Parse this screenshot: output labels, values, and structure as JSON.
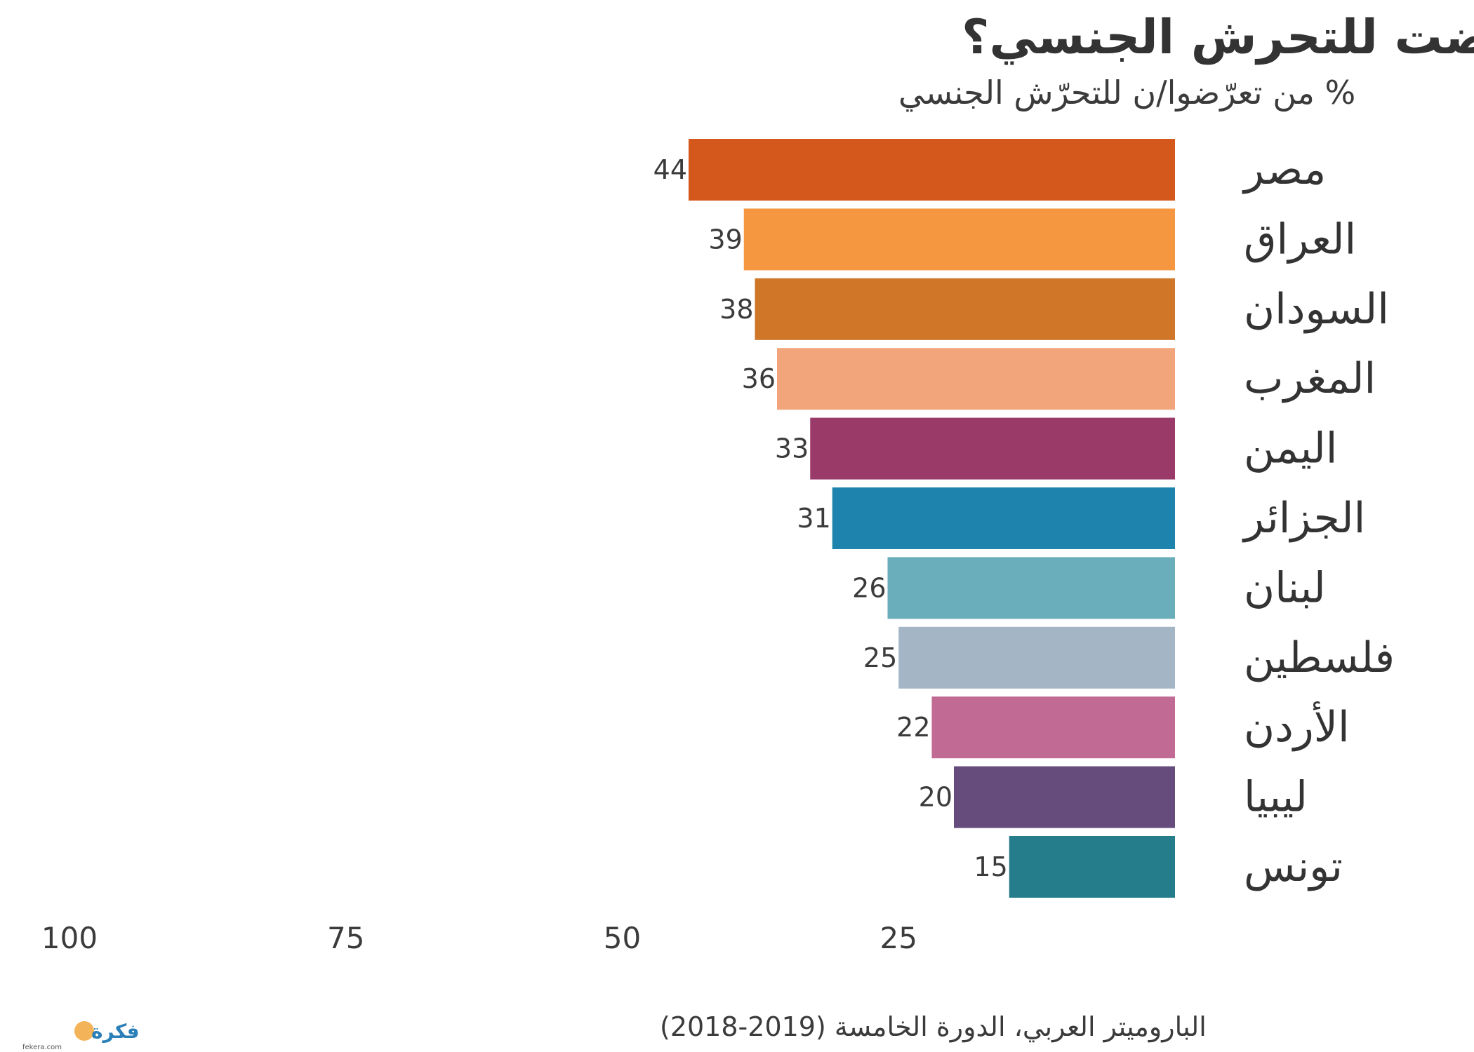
{
  "chart_data": {
    "type": "bar",
    "orientation": "horizontal",
    "direction": "rtl",
    "title": "هل تعرضت للتحرش الجنسي؟",
    "subtitle": "% من تعرّضوا/ن للتحرّش الجنسي",
    "categories": [
      "مصر",
      "العراق",
      "السودان",
      "المغرب",
      "اليمن",
      "الجزائر",
      "لبنان",
      "فلسطين",
      "الأردن",
      "ليبيا",
      "تونس"
    ],
    "values": [
      44,
      39,
      38,
      36,
      33,
      31,
      26,
      25,
      22,
      20,
      15
    ],
    "colors": [
      "#d4581b",
      "#f59640",
      "#cf7629",
      "#f2a57a",
      "#9a3a69",
      "#1f84ad",
      "#6aadbb",
      "#a4b5c5",
      "#c06a94",
      "#654c7d",
      "#257d8b"
    ],
    "xlim": [
      0,
      100
    ],
    "xticks": [
      100,
      75,
      50,
      25
    ],
    "xticks_labels": [
      "100",
      "75",
      "50",
      "25"
    ],
    "xlabel": "",
    "ylabel": "",
    "grid": false,
    "legend": "none",
    "source": "الباروميتر العربي، الدورة الخامسة (2019-2018)"
  },
  "watermark": {
    "text": "فكرة",
    "url": "fekera.com"
  }
}
